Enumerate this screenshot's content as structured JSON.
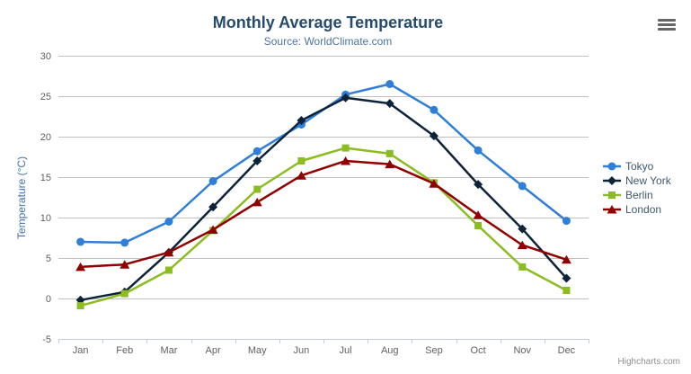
{
  "header": {
    "menu_icon": "hamburger-icon"
  },
  "credit": {
    "label": "Highcharts.com"
  },
  "chart_data": {
    "type": "line",
    "title": "Monthly Average Temperature",
    "subtitle": "Source: WorldClimate.com",
    "categories": [
      "Jan",
      "Feb",
      "Mar",
      "Apr",
      "May",
      "Jun",
      "Jul",
      "Aug",
      "Sep",
      "Oct",
      "Nov",
      "Dec"
    ],
    "xlabel": "",
    "ylabel": "Temperature (°C)",
    "ylim": [
      -5,
      30
    ],
    "yticks": [
      -5,
      0,
      5,
      10,
      15,
      20,
      25,
      30
    ],
    "grid": true,
    "legend_position": "right",
    "series": [
      {
        "name": "Tokyo",
        "color": "#2f7ed8",
        "marker": "circle",
        "values": [
          7.0,
          6.9,
          9.5,
          14.5,
          18.2,
          21.5,
          25.2,
          26.5,
          23.3,
          18.3,
          13.9,
          9.6
        ]
      },
      {
        "name": "New York",
        "color": "#0d233a",
        "marker": "diamond",
        "values": [
          -0.2,
          0.8,
          5.7,
          11.3,
          17.0,
          22.0,
          24.8,
          24.1,
          20.1,
          14.1,
          8.6,
          2.5
        ]
      },
      {
        "name": "Berlin",
        "color": "#8bbc21",
        "marker": "square",
        "values": [
          -0.9,
          0.6,
          3.5,
          8.4,
          13.5,
          17.0,
          18.6,
          17.9,
          14.3,
          9.0,
          3.9,
          1.0
        ]
      },
      {
        "name": "London",
        "color": "#910000",
        "marker": "triangle",
        "values": [
          3.9,
          4.2,
          5.7,
          8.5,
          11.9,
          15.2,
          17.0,
          16.6,
          14.2,
          10.3,
          6.6,
          4.8
        ]
      }
    ],
    "theme": {
      "background": "#ffffff",
      "title_color": "#274b6d",
      "subtitle_color": "#4d759e",
      "yaxis_title_color": "#4572a7",
      "axis_label_color": "#606060",
      "legend_text_color": "#3e576f",
      "gridline_color": "#c0c0c0",
      "axis_line_color": "#c0d0e0",
      "credit_color": "#909090",
      "menu_icon_color": "#666666"
    }
  }
}
